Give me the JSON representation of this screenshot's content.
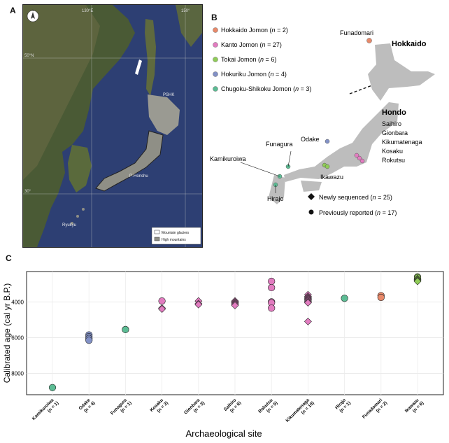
{
  "panel_a": {
    "letter": "A",
    "compass": "N",
    "lon_labels": [
      "130°E",
      "150°"
    ],
    "lat_labels": [
      "50°N",
      "30°"
    ],
    "region_labels": [
      "PSHK",
      "P-Honshu",
      "Ryukyu"
    ],
    "legend": [
      "Mountain glaciers",
      "High mountains"
    ]
  },
  "panel_b": {
    "letter": "B",
    "groups": [
      {
        "name": "Hokkaido Jomon",
        "n": "2",
        "color": "#e8896a"
      },
      {
        "name": "Kanto Jomon",
        "n": "27",
        "color": "#e27cc0"
      },
      {
        "name": "Tokai Jomon",
        "n": "6",
        "color": "#8fcc57"
      },
      {
        "name": "Hokuriku Jomon",
        "n": "4",
        "color": "#8291c6"
      },
      {
        "name": "Chugoku-Shikoku Jomon",
        "n": "3",
        "color": "#5cbc94"
      }
    ],
    "regions": {
      "hokkaido": "Hokkaido",
      "hondo": "Hondo"
    },
    "sites": {
      "funadomari": "Funadomari",
      "odake": "Odake",
      "funagura": "Funagura",
      "kamikuroiwa": "Kamikuroiwa",
      "hirajo": "Hirajo",
      "ikawazu": "Ikawazu",
      "kanto": [
        "Saihiro",
        "Gionbara",
        "Kikumatenaga",
        "Kosaku",
        "Rokutsu"
      ]
    },
    "marker_legend": [
      {
        "label": "Newly sequenced",
        "n": "25",
        "shape": "diamond"
      },
      {
        "label": "Previously reported",
        "n": "17",
        "shape": "circle"
      }
    ]
  },
  "panel_c": {
    "letter": "C",
    "chart_data": {
      "type": "scatter",
      "xlabel": "Archaeological site",
      "ylabel": "Calibrated age (cal yr B.P.)",
      "ylim": [
        9200,
        2300
      ],
      "yticks": [
        4000,
        6000,
        8000
      ],
      "grid": true,
      "categories": [
        {
          "site": "Kamikuroiwa",
          "n": "n = 1",
          "color": "#5cbc94",
          "points": [
            {
              "y": 8800,
              "shape": "circle"
            }
          ]
        },
        {
          "site": "Odake",
          "n": "n = 4",
          "color": "#8291c6",
          "points": [
            {
              "y": 5850,
              "shape": "circle"
            },
            {
              "y": 5950,
              "shape": "circle"
            },
            {
              "y": 6050,
              "shape": "circle"
            },
            {
              "y": 6150,
              "shape": "circle"
            }
          ]
        },
        {
          "site": "Funagura",
          "n": "n = 1",
          "color": "#5cbc94",
          "points": [
            {
              "y": 5550,
              "shape": "circle"
            }
          ]
        },
        {
          "site": "Kosaku",
          "n": "n = 3",
          "color": "#e27cc0",
          "points": [
            {
              "y": 3950,
              "shape": "circle"
            },
            {
              "y": 4350,
              "shape": "diamond"
            },
            {
              "y": 4400,
              "shape": "diamond"
            }
          ]
        },
        {
          "site": "Gionbara",
          "n": "n = 3",
          "color": "#e27cc0",
          "points": [
            {
              "y": 3950,
              "shape": "diamond"
            },
            {
              "y": 4100,
              "shape": "diamond"
            },
            {
              "y": 4150,
              "shape": "diamond"
            }
          ]
        },
        {
          "site": "Saihiro",
          "n": "n = 6",
          "color": "#e27cc0",
          "points": [
            {
              "y": 3950,
              "shape": "diamond"
            },
            {
              "y": 4000,
              "shape": "diamond"
            },
            {
              "y": 4050,
              "shape": "diamond"
            },
            {
              "y": 4100,
              "shape": "diamond"
            },
            {
              "y": 4150,
              "shape": "diamond"
            },
            {
              "y": 4200,
              "shape": "diamond"
            }
          ]
        },
        {
          "site": "Rokutsu",
          "n": "n = 5",
          "color": "#e27cc0",
          "points": [
            {
              "y": 2850,
              "shape": "circle"
            },
            {
              "y": 3200,
              "shape": "circle"
            },
            {
              "y": 4000,
              "shape": "circle"
            },
            {
              "y": 4050,
              "shape": "circle"
            },
            {
              "y": 4350,
              "shape": "circle"
            }
          ]
        },
        {
          "site": "Kikumatenaga",
          "n": "n = 10",
          "color": "#e27cc0",
          "points": [
            {
              "y": 3600,
              "shape": "diamond"
            },
            {
              "y": 3700,
              "shape": "diamond"
            },
            {
              "y": 3750,
              "shape": "diamond"
            },
            {
              "y": 3800,
              "shape": "diamond"
            },
            {
              "y": 3850,
              "shape": "diamond"
            },
            {
              "y": 3900,
              "shape": "diamond"
            },
            {
              "y": 3950,
              "shape": "diamond"
            },
            {
              "y": 4000,
              "shape": "diamond"
            },
            {
              "y": 4050,
              "shape": "diamond"
            },
            {
              "y": 5100,
              "shape": "diamond"
            }
          ]
        },
        {
          "site": "Hirajo",
          "n": "n = 1",
          "color": "#5cbc94",
          "points": [
            {
              "y": 3800,
              "shape": "circle"
            }
          ]
        },
        {
          "site": "Funadomari",
          "n": "n = 2",
          "color": "#e8896a",
          "points": [
            {
              "y": 3650,
              "shape": "circle"
            },
            {
              "y": 3750,
              "shape": "circle"
            }
          ]
        },
        {
          "site": "Ikawazu",
          "n": "n = 6",
          "color": "#8fcc57",
          "points": [
            {
              "y": 2600,
              "shape": "circle"
            },
            {
              "y": 2650,
              "shape": "circle"
            },
            {
              "y": 2700,
              "shape": "diamond"
            },
            {
              "y": 2750,
              "shape": "diamond"
            },
            {
              "y": 2800,
              "shape": "diamond"
            },
            {
              "y": 2850,
              "shape": "diamond"
            }
          ]
        }
      ]
    }
  }
}
